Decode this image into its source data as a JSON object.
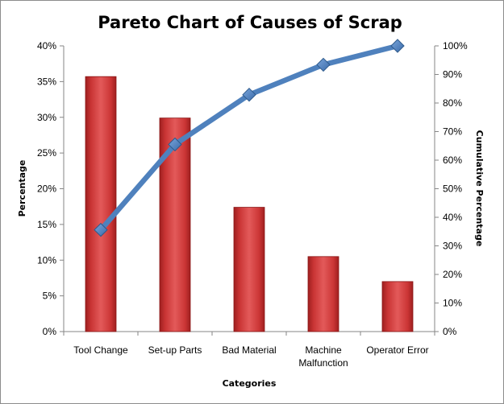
{
  "chart_data": {
    "type": "bar",
    "title": "Pareto Chart of Causes of Scrap",
    "xlabel": "Categories",
    "ylabel": "Percentage",
    "y2label": "Cumulative Percentage",
    "categories": [
      [
        "Tool Change"
      ],
      [
        "Set-up Parts"
      ],
      [
        "Bad Material"
      ],
      [
        "Machine",
        "Malfunction"
      ],
      [
        "Operator Error"
      ]
    ],
    "ylim": [
      0,
      40
    ],
    "y2lim": [
      0,
      100
    ],
    "yticks": [
      "0%",
      "5%",
      "10%",
      "15%",
      "20%",
      "25%",
      "30%",
      "35%",
      "40%"
    ],
    "y2ticks": [
      "0%",
      "10%",
      "20%",
      "30%",
      "40%",
      "50%",
      "60%",
      "70%",
      "80%",
      "90%",
      "100%"
    ],
    "grid": false,
    "legend": "none",
    "series": [
      {
        "type": "bar",
        "axis": "left",
        "values": [
          35.7,
          29.9,
          17.4,
          10.5,
          7.0
        ],
        "color": "#d83b3b"
      },
      {
        "type": "line",
        "axis": "right",
        "values": [
          35.6,
          65.5,
          82.9,
          93.4,
          100.0
        ],
        "color": "#4f81bd",
        "marker": "diamond"
      }
    ]
  }
}
